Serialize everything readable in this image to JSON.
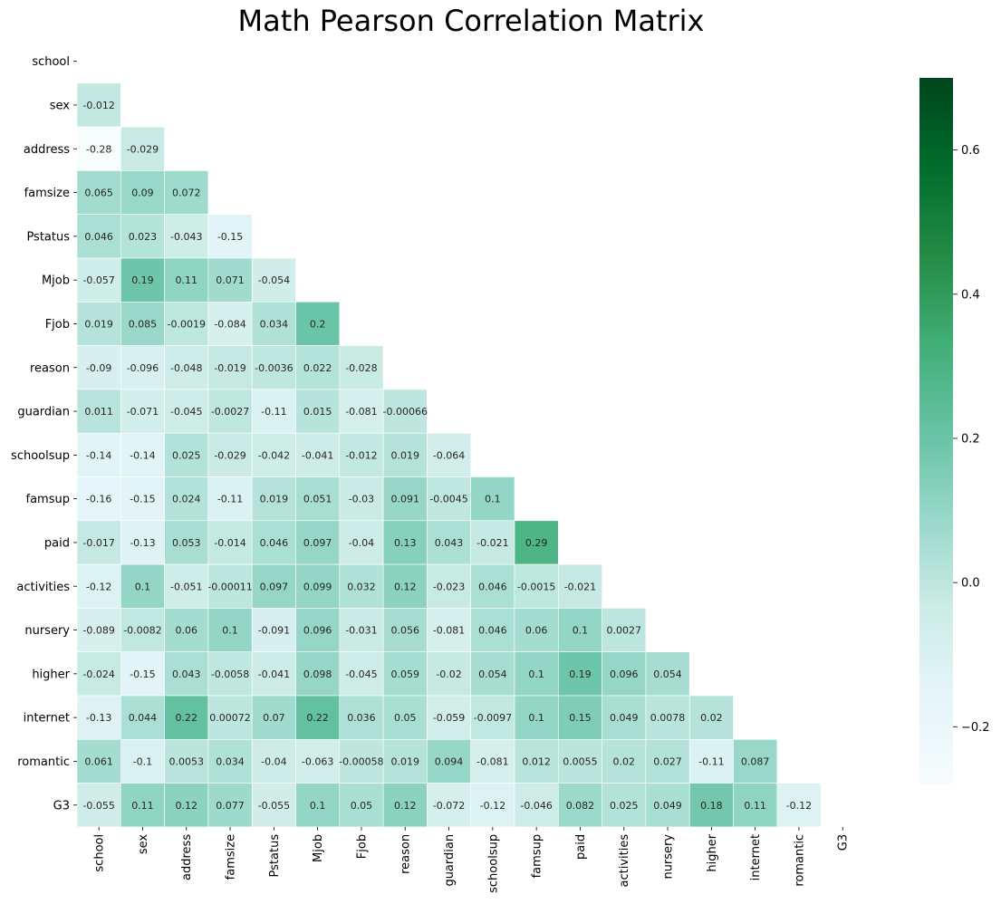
{
  "chart_data": {
    "type": "heatmap",
    "title": "Math Pearson Correlation Matrix",
    "labels": [
      "school",
      "sex",
      "address",
      "famsize",
      "Pstatus",
      "Mjob",
      "Fjob",
      "reason",
      "guardian",
      "schoolsup",
      "famsup",
      "paid",
      "activities",
      "nursery",
      "higher",
      "internet",
      "romantic",
      "G3"
    ],
    "mask": "upper-triangle-including-diagonal",
    "rows": [
      [],
      [
        "-0.012"
      ],
      [
        "-0.28",
        "-0.029"
      ],
      [
        "0.065",
        "0.09",
        "0.072"
      ],
      [
        "0.046",
        "0.023",
        "-0.043",
        "-0.15"
      ],
      [
        "-0.057",
        "0.19",
        "0.11",
        "0.071",
        "-0.054"
      ],
      [
        "0.019",
        "0.085",
        "-0.0019",
        "-0.084",
        "0.034",
        "0.2"
      ],
      [
        "-0.09",
        "-0.096",
        "-0.048",
        "-0.019",
        "-0.0036",
        "0.022",
        "-0.028"
      ],
      [
        "0.011",
        "-0.071",
        "-0.045",
        "-0.0027",
        "-0.11",
        "0.015",
        "-0.081",
        "-0.00066"
      ],
      [
        "-0.14",
        "-0.14",
        "0.025",
        "-0.029",
        "-0.042",
        "-0.041",
        "-0.012",
        "0.019",
        "-0.064"
      ],
      [
        "-0.16",
        "-0.15",
        "0.024",
        "-0.11",
        "0.019",
        "0.051",
        "-0.03",
        "0.091",
        "-0.0045",
        "0.1"
      ],
      [
        "-0.017",
        "-0.13",
        "0.053",
        "-0.014",
        "0.046",
        "0.097",
        "-0.04",
        "0.13",
        "0.043",
        "-0.021",
        "0.29"
      ],
      [
        "-0.12",
        "0.1",
        "-0.051",
        "-0.00011",
        "0.097",
        "0.099",
        "0.032",
        "0.12",
        "-0.023",
        "0.046",
        "-0.0015",
        "-0.021"
      ],
      [
        "-0.089",
        "-0.0082",
        "0.06",
        "0.1",
        "-0.091",
        "0.096",
        "-0.031",
        "0.056",
        "-0.081",
        "0.046",
        "0.06",
        "0.1",
        "0.0027"
      ],
      [
        "-0.024",
        "-0.15",
        "0.043",
        "-0.0058",
        "-0.041",
        "0.098",
        "-0.045",
        "0.059",
        "-0.02",
        "0.054",
        "0.1",
        "0.19",
        "0.096",
        "0.054"
      ],
      [
        "-0.13",
        "0.044",
        "0.22",
        "0.00072",
        "0.07",
        "0.22",
        "0.036",
        "0.05",
        "-0.059",
        "-0.0097",
        "0.1",
        "0.15",
        "0.049",
        "0.0078",
        "0.02"
      ],
      [
        "0.061",
        "-0.1",
        "0.0053",
        "0.034",
        "-0.04",
        "-0.063",
        "-0.00058",
        "0.019",
        "0.094",
        "-0.081",
        "0.012",
        "0.0055",
        "0.02",
        "0.027",
        "-0.11",
        "0.087"
      ],
      [
        "-0.055",
        "0.11",
        "0.12",
        "0.077",
        "-0.055",
        "0.1",
        "0.05",
        "0.12",
        "-0.072",
        "-0.12",
        "-0.046",
        "0.082",
        "0.025",
        "0.049",
        "0.18",
        "0.11",
        "-0.12"
      ]
    ],
    "colorbar": {
      "min": -0.28,
      "max": 0.7,
      "ticks": [
        {
          "value": 0.6,
          "label": "0.6"
        },
        {
          "value": 0.4,
          "label": "0.4"
        },
        {
          "value": 0.2,
          "label": "0.2"
        },
        {
          "value": 0.0,
          "label": "0.0"
        },
        {
          "value": -0.2,
          "label": "−0.2"
        }
      ]
    },
    "colormap": "BuGn",
    "colors": {
      "c0": "#f7fcfd",
      "c1": "#e5f5f9",
      "c2": "#ccece6",
      "c3": "#99d8c9",
      "c4": "#66c2a4",
      "c5": "#41ae76",
      "c6": "#238b45",
      "c7": "#006d2c",
      "c8": "#00441b"
    }
  }
}
